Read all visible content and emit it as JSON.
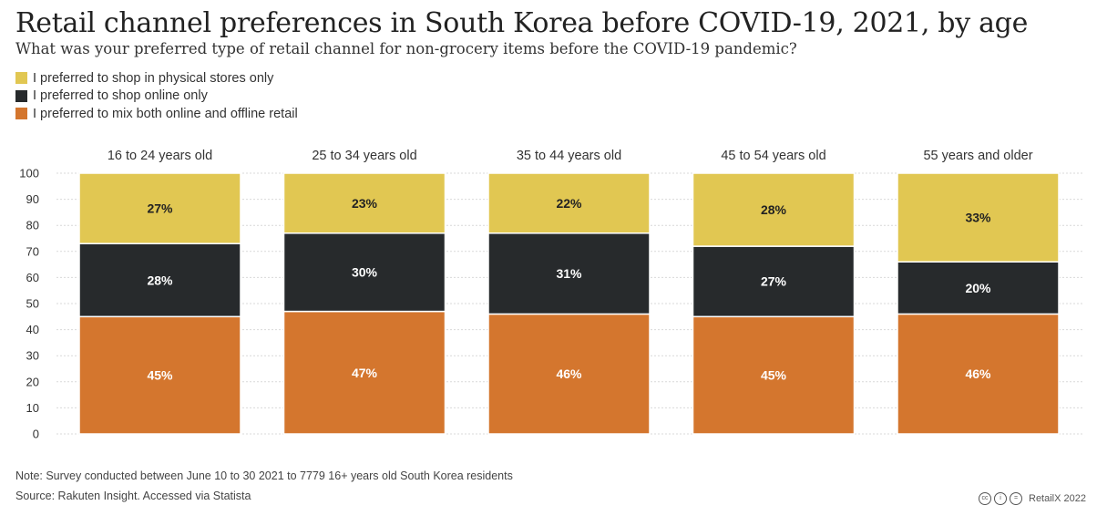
{
  "title": "Retail channel preferences in South Korea before COVID-19, 2021, by age",
  "subtitle": "What was your preferred type of retail channel for non-grocery items before the COVID-19 pandemic?",
  "legend": [
    {
      "label": "I preferred to shop in physical stores only",
      "color": "#e1c752"
    },
    {
      "label": "I preferred to shop online only",
      "color": "#272a2c"
    },
    {
      "label": "I preferred to mix both online and offline retail",
      "color": "#d4762e"
    }
  ],
  "chart_data": {
    "type": "bar",
    "stacked": true,
    "categories": [
      "16 to 24 years old",
      "25 to 34 years old",
      "35 to 44 years old",
      "45 to 54 years old",
      "55 years and older"
    ],
    "series": [
      {
        "name": "I preferred to mix both online and offline retail",
        "color": "#d4762e",
        "values": [
          45,
          47,
          46,
          45,
          46
        ],
        "labels": [
          "45%",
          "47%",
          "46%",
          "45%",
          "46%"
        ],
        "label_color": "#ffffff"
      },
      {
        "name": "I preferred to shop online only",
        "color": "#272a2c",
        "values": [
          28,
          30,
          31,
          27,
          20
        ],
        "labels": [
          "28%",
          "30%",
          "31%",
          "27%",
          "20%"
        ],
        "label_color": "#ffffff"
      },
      {
        "name": "I preferred to shop in physical stores only",
        "color": "#e1c752",
        "values": [
          27,
          23,
          22,
          28,
          33
        ],
        "labels": [
          "27%",
          "23%",
          "22%",
          "28%",
          "33%"
        ],
        "label_color": "#222222"
      }
    ],
    "ylim": [
      0,
      100
    ],
    "yticks": [
      "0",
      "10",
      "20",
      "30",
      "40",
      "50",
      "60",
      "70",
      "80",
      "90",
      "100"
    ],
    "grid": true,
    "xlabel": "",
    "ylabel": ""
  },
  "footer": {
    "note": "Note: Survey conducted between June 10 to 30 2021 to 7779 16+ years old South Korea residents",
    "source": "Source: Rakuten Insight. Accessed via Statista",
    "cc_glyphs": [
      "cc",
      "i",
      "="
    ],
    "credit": "RetailX 2022"
  }
}
